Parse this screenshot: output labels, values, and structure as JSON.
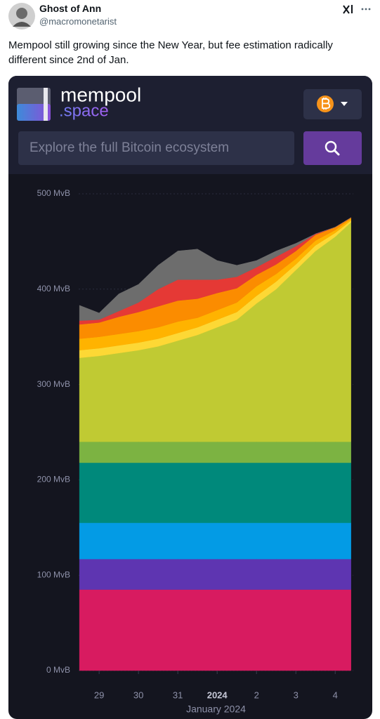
{
  "tweet": {
    "author": "Ghost of Ann",
    "handle": "@macromonetarist",
    "text": "Mempool still growing since the New Year, but fee estimation radically different since 2nd of Jan."
  },
  "app": {
    "logo_main": "mempool",
    "logo_sub": ".space",
    "search_placeholder": "Explore the full Bitcoin ecosystem"
  },
  "chart_data": {
    "type": "area",
    "stacked": true,
    "x": [
      -0.5,
      0,
      0.5,
      1,
      1.5,
      2,
      2.5,
      3,
      3.5,
      4,
      4.5,
      5,
      5.5,
      6,
      6.4
    ],
    "xlim": [
      -0.52,
      6.46
    ],
    "xticks": [
      {
        "value": 0,
        "label": "29"
      },
      {
        "value": 1,
        "label": "30"
      },
      {
        "value": 2,
        "label": "31"
      },
      {
        "value": 3,
        "label": "2024"
      },
      {
        "value": 4,
        "label": "2"
      },
      {
        "value": 5,
        "label": "3"
      },
      {
        "value": 6,
        "label": "4"
      }
    ],
    "xlabel": "January 2024",
    "ylim": [
      0,
      500
    ],
    "yticks": [
      {
        "value": 0,
        "label": "0 MvB"
      },
      {
        "value": 100,
        "label": "100 MvB"
      },
      {
        "value": 200,
        "label": "200 MvB"
      },
      {
        "value": 300,
        "label": "300 MvB"
      },
      {
        "value": 400,
        "label": "400 MvB"
      },
      {
        "value": 500,
        "label": "500 MvB"
      }
    ],
    "grid": true,
    "series": [
      {
        "color": "#d81b60",
        "values": [
          85,
          85,
          85,
          85,
          85,
          85,
          85,
          85,
          85,
          85,
          85,
          85,
          85,
          85,
          85
        ]
      },
      {
        "color": "#5e35b1",
        "values": [
          32,
          32,
          32,
          32,
          32,
          32,
          32,
          32,
          32,
          32,
          32,
          32,
          32,
          32,
          32
        ]
      },
      {
        "color": "#039be5",
        "values": [
          38,
          38,
          38,
          38,
          38,
          38,
          38,
          38,
          38,
          38,
          38,
          38,
          38,
          38,
          38
        ]
      },
      {
        "color": "#00897b",
        "values": [
          63,
          63,
          63,
          63,
          63,
          63,
          63,
          63,
          63,
          63,
          63,
          63,
          63,
          63,
          63
        ]
      },
      {
        "color": "#7cb342",
        "values": [
          22,
          22,
          22,
          22,
          22,
          22,
          22,
          22,
          22,
          22,
          22,
          22,
          22,
          22,
          22
        ]
      },
      {
        "color": "#c0ca33",
        "values": [
          88,
          90,
          93,
          96,
          100,
          106,
          112,
          120,
          128,
          145,
          160,
          180,
          200,
          215,
          230
        ]
      },
      {
        "color": "#fdd835",
        "values": [
          8,
          8,
          8,
          8,
          8,
          8,
          8,
          8,
          8,
          8,
          8,
          6,
          6,
          4,
          2
        ]
      },
      {
        "color": "#ffb300",
        "values": [
          12,
          12,
          12,
          12,
          12,
          12,
          10,
          10,
          10,
          10,
          8,
          6,
          5,
          3,
          2
        ]
      },
      {
        "color": "#fb8c00",
        "values": [
          15,
          15,
          18,
          20,
          22,
          22,
          20,
          18,
          15,
          12,
          10,
          8,
          6,
          3,
          1
        ]
      },
      {
        "color": "#e53935",
        "values": [
          4,
          3,
          6,
          10,
          18,
          22,
          20,
          14,
          12,
          8,
          8,
          5,
          1,
          0,
          0
        ]
      },
      {
        "color": "#6d6d6d",
        "values": [
          16,
          7,
          18,
          19,
          25,
          30,
          32,
          20,
          12,
          7,
          6,
          3,
          0,
          0,
          0
        ]
      }
    ]
  }
}
